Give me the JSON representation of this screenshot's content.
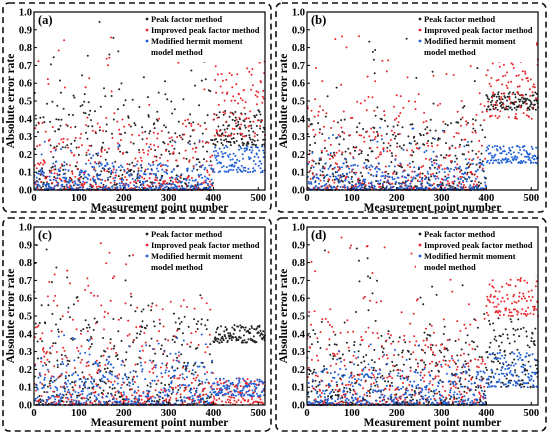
{
  "figure": {
    "xlabel": "Measurement point number",
    "ylabel": "Absolute error rate",
    "xticks": [
      "0",
      "100",
      "200",
      "300",
      "400",
      "500"
    ],
    "yticks": [
      "0.0",
      "0.1",
      "0.2",
      "0.3",
      "0.4",
      "0.5",
      "0.6",
      "0.7",
      "0.8",
      "0.9",
      "1.0"
    ],
    "legend": [
      {
        "name": "Peak factor method",
        "color": "#222222"
      },
      {
        "name": "Improved peak factor method",
        "color": "#e8262b"
      },
      {
        "name": "Modified hermit moment",
        "name2": "model method",
        "color": "#1f5fd6"
      }
    ]
  },
  "chart_data": [
    {
      "panel": "(a)",
      "type": "scatter",
      "xlim": [
        0,
        515
      ],
      "ylim": [
        0,
        1.0
      ],
      "legend_position": "top-right",
      "n_points": 515,
      "series": [
        {
          "name": "Peak factor method",
          "color": "#222222",
          "typical_range": [
            0.0,
            0.55
          ],
          "max": 0.95,
          "note_range_400_500": [
            0.25,
            0.45
          ]
        },
        {
          "name": "Improved peak factor method",
          "color": "#e8262b",
          "typical_range": [
            0.0,
            0.4
          ],
          "max": 0.9,
          "note_range_400_500": [
            0.3,
            0.85
          ]
        },
        {
          "name": "Modified hermit moment model method",
          "color": "#1f5fd6",
          "typical_range": [
            0.0,
            0.15
          ],
          "max": 0.3,
          "note_range_400_500": [
            0.1,
            0.25
          ]
        }
      ]
    },
    {
      "panel": "(b)",
      "type": "scatter",
      "xlim": [
        0,
        515
      ],
      "ylim": [
        0,
        1.0
      ],
      "legend_position": "top-right",
      "n_points": 515,
      "series": [
        {
          "name": "Peak factor method",
          "color": "#222222",
          "typical_range": [
            0.0,
            0.4
          ],
          "max": 0.9,
          "note_range_400_500": [
            0.45,
            0.55
          ]
        },
        {
          "name": "Improved peak factor method",
          "color": "#e8262b",
          "typical_range": [
            0.0,
            0.5
          ],
          "max": 0.95,
          "note_range_400_500": [
            0.4,
            0.85
          ]
        },
        {
          "name": "Modified hermit moment model method",
          "color": "#1f5fd6",
          "typical_range": [
            0.0,
            0.15
          ],
          "max": 0.35,
          "note_range_400_500": [
            0.15,
            0.25
          ]
        }
      ]
    },
    {
      "panel": "(c)",
      "type": "scatter",
      "xlim": [
        0,
        515
      ],
      "ylim": [
        0,
        1.0
      ],
      "legend_position": "top-right",
      "n_points": 515,
      "series": [
        {
          "name": "Peak factor method",
          "color": "#222222",
          "typical_range": [
            0.0,
            0.5
          ],
          "max": 0.9,
          "note_range_400_500": [
            0.35,
            0.45
          ]
        },
        {
          "name": "Improved peak factor method",
          "color": "#e8262b",
          "typical_range": [
            0.0,
            0.6
          ],
          "max": 0.95,
          "note_range_400_500": [
            0.0,
            0.15
          ]
        },
        {
          "name": "Modified hermit moment model method",
          "color": "#1f5fd6",
          "typical_range": [
            0.0,
            0.25
          ],
          "max": 0.4,
          "note_range_400_500": [
            0.05,
            0.15
          ]
        }
      ]
    },
    {
      "panel": "(d)",
      "type": "scatter",
      "xlim": [
        0,
        515
      ],
      "ylim": [
        0,
        1.0
      ],
      "legend_position": "top-right",
      "n_points": 515,
      "series": [
        {
          "name": "Peak factor method",
          "color": "#222222",
          "typical_range": [
            0.0,
            0.4
          ],
          "max": 0.9,
          "note_range_400_500": [
            0.1,
            0.5
          ]
        },
        {
          "name": "Improved peak factor method",
          "color": "#e8262b",
          "typical_range": [
            0.0,
            0.5
          ],
          "max": 0.95,
          "note_range_400_500": [
            0.5,
            0.8
          ]
        },
        {
          "name": "Modified hermit moment model method",
          "color": "#1f5fd6",
          "typical_range": [
            0.0,
            0.2
          ],
          "max": 0.35,
          "note_range_400_500": [
            0.1,
            0.3
          ]
        }
      ]
    }
  ]
}
